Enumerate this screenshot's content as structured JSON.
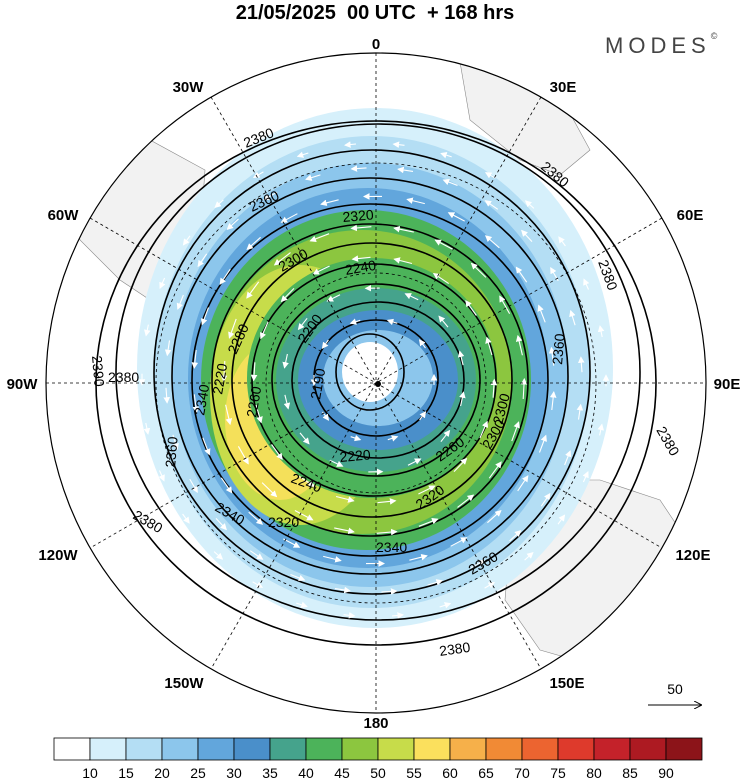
{
  "title": "21/05/2025  00 UTC  + 168 hrs",
  "brand": "MODES",
  "brand_mark": "©",
  "longitude_labels": {
    "lon_0": "0",
    "lon_30e": "30E",
    "lon_60e": "60E",
    "lon_90e": "90E",
    "lon_120e": "120E",
    "lon_150e": "150E",
    "lon_180": "180",
    "lon_150w": "150W",
    "lon_120w": "120W",
    "lon_90w": "90W",
    "lon_60w": "60W",
    "lon_30w": "30W"
  },
  "contour_labels": [
    "2380",
    "2360",
    "2320",
    "2300",
    "2240",
    "2200",
    "2190",
    "2260",
    "2340",
    "2280",
    "2220",
    "2300",
    "2360",
    "2380",
    "2380",
    "2380",
    "2380",
    "2340",
    "2320",
    "2360",
    "2380",
    "2390",
    "2360",
    "2340",
    "2220",
    "2260",
    "2240",
    "2300",
    "2320",
    "2380"
  ],
  "reference_vector": "50",
  "colorbar": {
    "labels": [
      "10",
      "15",
      "20",
      "25",
      "30",
      "35",
      "40",
      "45",
      "50",
      "55",
      "60",
      "65",
      "70",
      "75",
      "80",
      "85",
      "90"
    ],
    "colors": [
      "#ffffff",
      "#d6f0fb",
      "#b4def4",
      "#8cc6ec",
      "#62a6dc",
      "#4a8fca",
      "#45a38c",
      "#4cb35a",
      "#8cc63f",
      "#c7dc4a",
      "#fbe05d",
      "#f6b04a",
      "#f18a35",
      "#ec6430",
      "#de3a2c",
      "#c4222a",
      "#ad1a22",
      "#8c1419"
    ]
  },
  "colors": {
    "land": "#f2f2f2",
    "ocean": "#ffffff",
    "contour": "#000000",
    "vector": "#ffffff"
  }
}
